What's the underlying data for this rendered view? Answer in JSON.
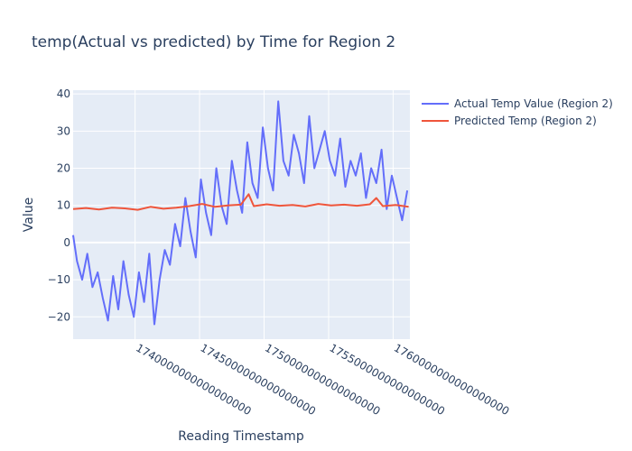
{
  "chart_data": {
    "type": "line",
    "title": "temp(Actual vs predicted) by  Time for Region 2",
    "xlabel": "Reading Timestamp",
    "ylabel": "Value",
    "xlim": [
      1735200000000000000,
      1761300000000000000
    ],
    "ylim": [
      -26,
      41
    ],
    "y_ticks": [
      -20,
      -10,
      0,
      10,
      20,
      30,
      40
    ],
    "x_ticks": [
      1740000000000000000,
      1745000000000000000,
      1750000000000000000,
      1755000000000000000,
      1760000000000000000
    ],
    "x_tick_labels": [
      "1740000000000000000",
      "1745000000000000000",
      "1750000000000000000",
      "1755000000000000000",
      "1760000000000000000"
    ],
    "x_label_rotation": 30,
    "grid": true,
    "legend_position": "top-right",
    "plot_background": "#e5ecf6",
    "series": [
      {
        "name": "Actual Temp Value (Region 2)",
        "color": "#636efa",
        "x": [
          1735200000000000000,
          1735500000000000000,
          1735900000000000000,
          1736300000000000000,
          1736700000000000000,
          1737100000000000000,
          1737500000000000000,
          1737900000000000000,
          1738300000000000000,
          1738700000000000000,
          1739100000000000000,
          1739500000000000000,
          1739900000000000000,
          1740300000000000000,
          1740700000000000000,
          1741100000000000000,
          1741500000000000000,
          1741900000000000000,
          1742300000000000000,
          1742700000000000000,
          1743100000000000000,
          1743500000000000000,
          1743900000000000000,
          1744300000000000000,
          1744700000000000000,
          1745100000000000000,
          1745500000000000000,
          1745900000000000000,
          1746300000000000000,
          1746700000000000000,
          1747100000000000000,
          1747500000000000000,
          1747900000000000000,
          1748300000000000000,
          1748700000000000000,
          1749100000000000000,
          1749500000000000000,
          1749900000000000000,
          1750300000000000000,
          1750700000000000000,
          1751100000000000000,
          1751500000000000000,
          1751900000000000000,
          1752300000000000000,
          1752700000000000000,
          1753100000000000000,
          1753500000000000000,
          1753900000000000000,
          1754300000000000000,
          1754700000000000000,
          1755100000000000000,
          1755500000000000000,
          1755900000000000000,
          1756300000000000000,
          1756700000000000000,
          1757100000000000000,
          1757500000000000000,
          1757900000000000000,
          1758300000000000000,
          1758700000000000000,
          1759100000000000000,
          1759500000000000000,
          1759900000000000000,
          1760300000000000000,
          1760700000000000000,
          1761100000000000000
        ],
        "y": [
          2,
          -5,
          -10,
          -3,
          -12,
          -8,
          -15,
          -21,
          -9,
          -18,
          -5,
          -14,
          -20,
          -8,
          -16,
          -3,
          -22,
          -10,
          -2,
          -6,
          5,
          -1,
          12,
          3,
          -4,
          17,
          8,
          2,
          20,
          10,
          5,
          22,
          14,
          8,
          27,
          16,
          12,
          31,
          20,
          14,
          38,
          22,
          18,
          29,
          24,
          16,
          34,
          20,
          25,
          30,
          22,
          18,
          28,
          15,
          22,
          18,
          24,
          12,
          20,
          16,
          25,
          9,
          18,
          12,
          6,
          14
        ]
      },
      {
        "name": "Predicted Temp (Region 2)",
        "color": "#ef553b",
        "x": [
          1735200000000000000,
          1736200000000000000,
          1737200000000000000,
          1738200000000000000,
          1739200000000000000,
          1740200000000000000,
          1741200000000000000,
          1742200000000000000,
          1743200000000000000,
          1744200000000000000,
          1745200000000000000,
          1746200000000000000,
          1747200000000000000,
          1748200000000000000,
          1748800000000000000,
          1749200000000000000,
          1750200000000000000,
          1751200000000000000,
          1752200000000000000,
          1753200000000000000,
          1754200000000000000,
          1755200000000000000,
          1756200000000000000,
          1757200000000000000,
          1758200000000000000,
          1758700000000000000,
          1759200000000000000,
          1760200000000000000,
          1761200000000000000
        ],
        "y": [
          9,
          9.3,
          8.9,
          9.4,
          9.2,
          8.8,
          9.6,
          9.1,
          9.4,
          9.8,
          10.4,
          9.6,
          10,
          10.2,
          13,
          9.8,
          10.3,
          9.9,
          10.1,
          9.7,
          10.4,
          10,
          10.2,
          9.9,
          10.3,
          12,
          9.8,
          10.1,
          9.6
        ]
      }
    ]
  }
}
